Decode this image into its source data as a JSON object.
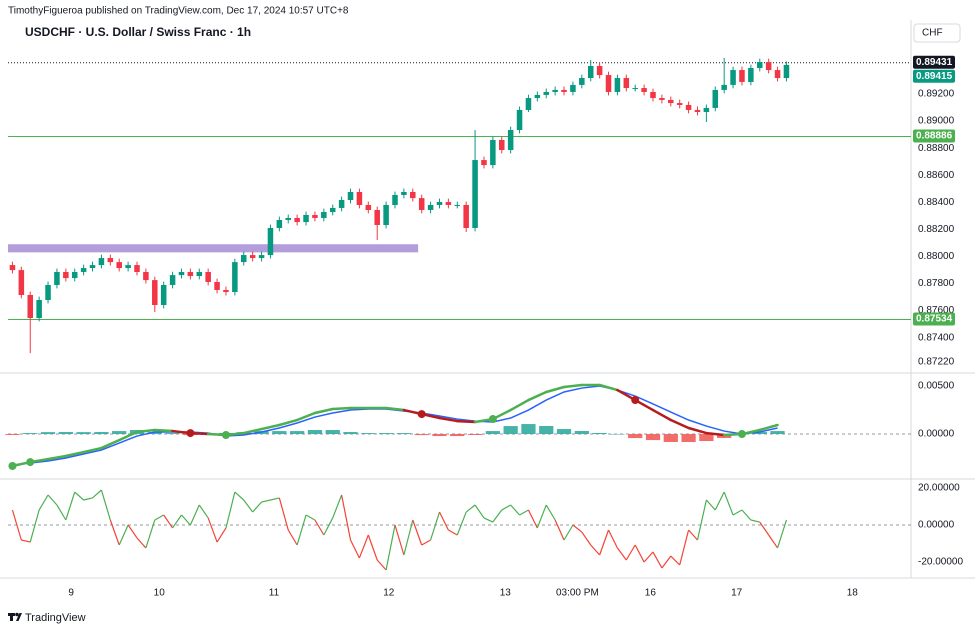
{
  "header": {
    "published": "TimothyFigueroa published on TradingView.com, Dec 17, 2024 10:57 UTC+8"
  },
  "footer": {
    "brand": "TradingView"
  },
  "chart_data": [
    {
      "type": "candlestick",
      "title": "USDCHF · U.S. Dollar / Swiss Franc · 1h",
      "currency": "CHF",
      "up_color": "#089981",
      "down_color": "#f23645",
      "open": [
        0.87936,
        0.87899,
        0.87715,
        0.87545,
        0.87678,
        0.87789,
        0.87885,
        0.8784,
        0.87885,
        0.87914,
        0.87936,
        0.87988,
        0.87958,
        0.87914,
        0.87936,
        0.87885,
        0.87825,
        0.87641,
        0.87789,
        0.87862,
        0.87885,
        0.87855,
        0.87885,
        0.87811,
        0.87752,
        0.87737,
        0.87958,
        0.8801,
        0.87988,
        0.8801,
        0.8821,
        0.88269,
        0.88284,
        0.88254,
        0.88306,
        0.88284,
        0.88328,
        0.88358,
        0.88417,
        0.88476,
        0.8838,
        0.88343,
        0.88232,
        0.8838,
        0.88454,
        0.88476,
        0.88431,
        0.88343,
        0.8838,
        0.88402,
        0.8838,
        0.8838,
        0.8821,
        0.88712,
        0.88675,
        0.8886,
        0.88786,
        0.88934,
        0.89082,
        0.8917,
        0.89193,
        0.89215,
        0.8923,
        0.89215,
        0.89267,
        0.89318,
        0.89407,
        0.8934,
        0.89215,
        0.89318,
        0.89244,
        0.89244,
        0.89215,
        0.8917,
        0.89156,
        0.89133,
        0.89119,
        0.89082,
        0.89067,
        0.89097,
        0.8923,
        0.89267,
        0.89377,
        0.89289,
        0.89392,
        0.89436,
        0.89377,
        0.89318
      ],
      "high": [
        0.87961,
        0.87924,
        0.8774,
        0.87703,
        0.87814,
        0.8791,
        0.8791,
        0.8791,
        0.87939,
        0.87961,
        0.88013,
        0.88013,
        0.87983,
        0.87961,
        0.87961,
        0.8791,
        0.8785,
        0.87814,
        0.87887,
        0.8791,
        0.8791,
        0.8791,
        0.8791,
        0.87836,
        0.87777,
        0.87983,
        0.88035,
        0.88035,
        0.88035,
        0.88235,
        0.88294,
        0.88309,
        0.88309,
        0.88331,
        0.88331,
        0.88353,
        0.88383,
        0.88442,
        0.88501,
        0.88501,
        0.88405,
        0.88368,
        0.88405,
        0.88479,
        0.88501,
        0.88501,
        0.88456,
        0.88405,
        0.88427,
        0.88427,
        0.88405,
        0.88405,
        0.88934,
        0.88737,
        0.88885,
        0.88885,
        0.88959,
        0.89107,
        0.89195,
        0.89218,
        0.8924,
        0.89255,
        0.89255,
        0.89292,
        0.89343,
        0.89451,
        0.89432,
        0.89365,
        0.89343,
        0.89343,
        0.89269,
        0.89269,
        0.8924,
        0.89195,
        0.89181,
        0.89158,
        0.89144,
        0.89107,
        0.89122,
        0.89255,
        0.89466,
        0.89402,
        0.89402,
        0.89417,
        0.89461,
        0.89461,
        0.89402,
        0.8944
      ],
      "low": [
        0.87874,
        0.8769,
        0.87286,
        0.8752,
        0.87653,
        0.87764,
        0.87815,
        0.87815,
        0.8786,
        0.87889,
        0.87911,
        0.87933,
        0.87889,
        0.87889,
        0.8786,
        0.878,
        0.87589,
        0.87616,
        0.87764,
        0.87837,
        0.8783,
        0.8783,
        0.87786,
        0.87727,
        0.87712,
        0.87712,
        0.87933,
        0.87963,
        0.87963,
        0.87985,
        0.88185,
        0.88244,
        0.88229,
        0.88229,
        0.88259,
        0.88259,
        0.88303,
        0.88333,
        0.88392,
        0.88355,
        0.88318,
        0.88121,
        0.88207,
        0.88355,
        0.88429,
        0.88406,
        0.88318,
        0.88318,
        0.88355,
        0.88355,
        0.88355,
        0.8818,
        0.88185,
        0.8865,
        0.8865,
        0.88761,
        0.88761,
        0.88909,
        0.89067,
        0.89145,
        0.89168,
        0.8919,
        0.8919,
        0.8919,
        0.89242,
        0.89293,
        0.89315,
        0.8919,
        0.8919,
        0.89219,
        0.89219,
        0.8919,
        0.89145,
        0.89131,
        0.89108,
        0.89094,
        0.89057,
        0.89042,
        0.88993,
        0.89072,
        0.89205,
        0.89242,
        0.89264,
        0.89264,
        0.89367,
        0.89352,
        0.89293,
        0.89293
      ],
      "close": [
        0.87899,
        0.87715,
        0.87545,
        0.87678,
        0.87789,
        0.87885,
        0.8784,
        0.87885,
        0.87914,
        0.87936,
        0.87988,
        0.87958,
        0.87914,
        0.87936,
        0.87885,
        0.87825,
        0.87641,
        0.87789,
        0.87862,
        0.87885,
        0.87855,
        0.87885,
        0.87811,
        0.87752,
        0.87737,
        0.87958,
        0.8801,
        0.87988,
        0.8801,
        0.8821,
        0.88269,
        0.88284,
        0.88254,
        0.88306,
        0.88284,
        0.88328,
        0.88358,
        0.88417,
        0.88476,
        0.8838,
        0.88343,
        0.88232,
        0.8838,
        0.88454,
        0.88476,
        0.88431,
        0.88343,
        0.8838,
        0.88402,
        0.8838,
        0.8838,
        0.8821,
        0.88712,
        0.88675,
        0.8886,
        0.88786,
        0.88934,
        0.89082,
        0.8917,
        0.89193,
        0.89215,
        0.8923,
        0.89215,
        0.89267,
        0.89318,
        0.89407,
        0.8934,
        0.89215,
        0.89318,
        0.89244,
        0.89244,
        0.89215,
        0.8917,
        0.89156,
        0.89133,
        0.89119,
        0.89082,
        0.89067,
        0.89097,
        0.8923,
        0.89267,
        0.89377,
        0.89289,
        0.89392,
        0.89436,
        0.89377,
        0.89318,
        0.89415
      ],
      "xlim": [
        -0.5,
        101
      ],
      "xticks": [
        {
          "value": 6.6,
          "label": "9"
        },
        {
          "value": 16.5,
          "label": "10"
        },
        {
          "value": 29.4,
          "label": "11"
        },
        {
          "value": 42.3,
          "label": "12"
        },
        {
          "value": 55.4,
          "label": "13"
        },
        {
          "value": 63.5,
          "label": "03:00 PM"
        },
        {
          "value": 71.7,
          "label": "16"
        },
        {
          "value": 81.4,
          "label": "17"
        },
        {
          "value": 94.4,
          "label": "18"
        }
      ],
      "ylim": [
        0.87146,
        0.89562
      ],
      "yticks": [
        {
          "value": 0.8722,
          "label": "0.87220"
        },
        {
          "value": 0.874,
          "label": "0.87400"
        },
        {
          "value": 0.876,
          "label": "0.87600"
        },
        {
          "value": 0.878,
          "label": "0.87800"
        },
        {
          "value": 0.88,
          "label": "0.88000"
        },
        {
          "value": 0.882,
          "label": "0.88200"
        },
        {
          "value": 0.884,
          "label": "0.88400"
        },
        {
          "value": 0.886,
          "label": "0.88600"
        },
        {
          "value": 0.888,
          "label": "0.88800"
        },
        {
          "value": 0.89,
          "label": "0.89000"
        },
        {
          "value": 0.892,
          "label": "0.89200"
        }
      ],
      "grid": false,
      "levels": [
        {
          "value": 0.89431,
          "color": "#131722",
          "style": "dotted"
        },
        {
          "value": 0.88886,
          "color": "#4caf50",
          "style": "solid"
        },
        {
          "value": 0.87534,
          "color": "#4caf50",
          "style": "solid"
        }
      ],
      "zones": [
        {
          "x": [
            -0.5,
            45.6
          ],
          "y": [
            0.8803,
            0.8809
          ],
          "color": "#b39ddb"
        }
      ]
    },
    {
      "type": "macd",
      "x": [
        0,
        2,
        4,
        6,
        8,
        10,
        12,
        14,
        16,
        18,
        20,
        22,
        24,
        26,
        28,
        30,
        32,
        34,
        36,
        38,
        40,
        42,
        44,
        46,
        48,
        50,
        52,
        54,
        56,
        58,
        60,
        62,
        64,
        66,
        68,
        70,
        72,
        74,
        76,
        78,
        80,
        82,
        84,
        86
      ],
      "ylim": [
        -0.00458,
        0.00615
      ],
      "yticks": [
        {
          "value": 0.005,
          "label": "0.00500"
        },
        {
          "value": 0,
          "label": "0.00000"
        }
      ],
      "macd": {
        "color_up": "#4caf50",
        "color_down": "#b71c1c",
        "values": [
          -0.00333,
          -0.00292,
          -0.00261,
          -0.00229,
          -0.00188,
          -0.00146,
          -0.00063,
          0.00021,
          0.00042,
          0.00031,
          0.0001,
          0.0,
          -0.0001,
          0.0001,
          0.00052,
          0.00094,
          0.00146,
          0.00219,
          0.00261,
          0.00271,
          0.00271,
          0.00271,
          0.0025,
          0.00208,
          0.00167,
          0.00135,
          0.00125,
          0.00156,
          0.0025,
          0.00354,
          0.00438,
          0.0049,
          0.00511,
          0.00511,
          0.00458,
          0.00354,
          0.0025,
          0.00146,
          0.00063,
          0.0001,
          -0.0001,
          0.0,
          0.00042,
          0.00094
        ]
      },
      "signal": {
        "color": "#2962ff",
        "values": [
          -0.00323,
          -0.00302,
          -0.00281,
          -0.0025,
          -0.00208,
          -0.00167,
          -0.00094,
          -0.00021,
          0.00021,
          0.00021,
          0.00021,
          0.0001,
          -0.00021,
          -0.0001,
          0.00021,
          0.00063,
          0.00115,
          0.00177,
          0.00219,
          0.0025,
          0.00261,
          0.00261,
          0.0024,
          0.00219,
          0.00188,
          0.00156,
          0.00135,
          0.00125,
          0.00167,
          0.0025,
          0.00354,
          0.00438,
          0.00479,
          0.005,
          0.00458,
          0.00396,
          0.00313,
          0.00229,
          0.00146,
          0.00083,
          0.00031,
          0.0,
          0.00021,
          0.00063
        ]
      },
      "histogram": {
        "color_up": "#26a69a",
        "color_down": "#ef5350",
        "values": [
          -0.0001,
          0.0001,
          0.0002,
          0.00021,
          0.0002,
          0.00021,
          0.00031,
          0.00042,
          0.00021,
          0.0001,
          -0.00011,
          -0.0001,
          0.00011,
          0.0002,
          0.00031,
          0.00031,
          0.00031,
          0.00042,
          0.00042,
          0.00021,
          0.0001,
          0.0001,
          0.0001,
          -0.00011,
          -0.00021,
          -0.00021,
          -0.0001,
          0.00031,
          0.00083,
          0.00104,
          0.00084,
          0.00052,
          0.00032,
          0.00011,
          0.0,
          -0.00042,
          -0.00063,
          -0.00083,
          -0.00083,
          -0.00073,
          -0.00041,
          0.0,
          0.00021,
          0.00031
        ]
      }
    },
    {
      "type": "line",
      "color_up": "#4caf50",
      "color_down": "#f44336",
      "values": [
        8.1,
        -8.1,
        -9.2,
        8.1,
        16.2,
        10.8,
        2.7,
        17.8,
        13.5,
        14.6,
        18.9,
        2.7,
        -10.8,
        0.0,
        -7.0,
        -12.4,
        2.7,
        5.4,
        -1.6,
        5.4,
        0.0,
        10.8,
        3.8,
        -9.2,
        -1.6,
        17.8,
        13.5,
        7.0,
        12.4,
        13.5,
        14.6,
        -2.7,
        -10.8,
        5.4,
        2.7,
        -5.4,
        3.8,
        16.2,
        -8.1,
        -17.8,
        -5.4,
        -18.9,
        -24.3,
        0.0,
        -16.2,
        2.7,
        -10.8,
        -8.1,
        7.0,
        -2.7,
        -5.4,
        7.0,
        10.8,
        3.8,
        1.6,
        8.1,
        10.8,
        5.4,
        8.1,
        -1.6,
        10.8,
        2.7,
        -8.1,
        0.0,
        -3.8,
        -10.8,
        -16.2,
        -2.7,
        -12.4,
        -18.9,
        -10.8,
        -20.0,
        -14.6,
        -23.2,
        -16.8,
        -21.6,
        -2.7,
        -8.1,
        13.5,
        8.1,
        17.8,
        5.4,
        8.1,
        2.7,
        1.6,
        -5.4,
        -12.4,
        2.7
      ],
      "ylim": [
        -27.0,
        24.3
      ],
      "yticks": [
        {
          "value": 20,
          "label": "20.00000"
        },
        {
          "value": 0,
          "label": "0.00000"
        },
        {
          "value": -20,
          "label": "-20.00000"
        }
      ]
    }
  ]
}
